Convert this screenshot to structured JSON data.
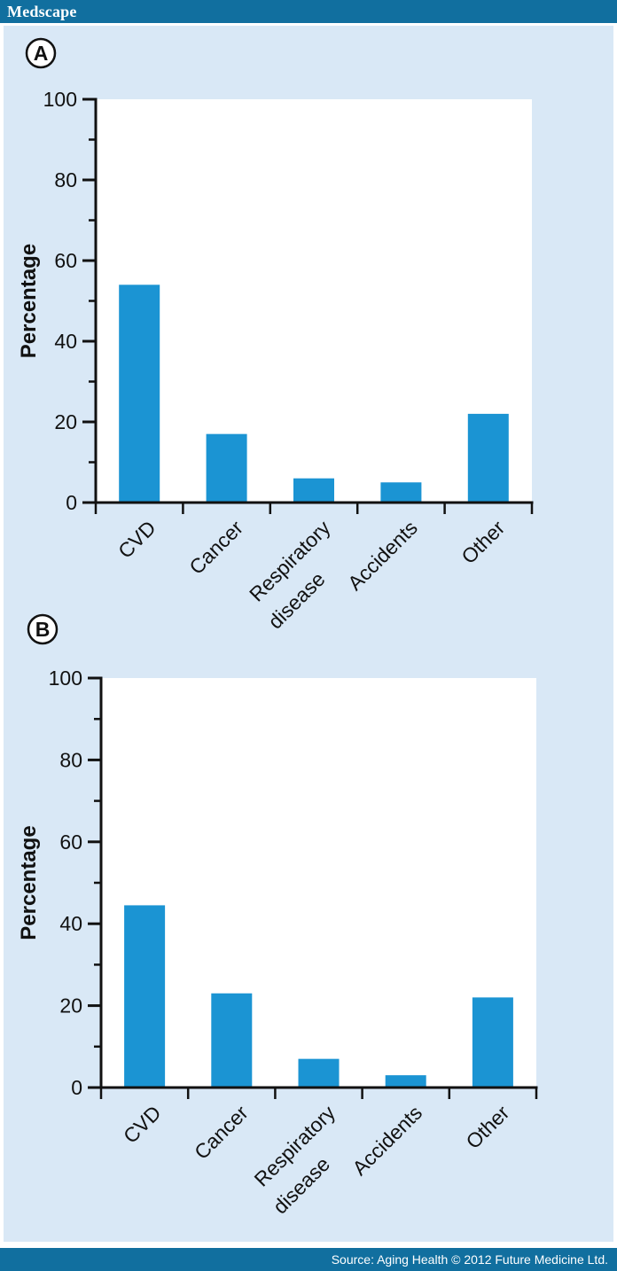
{
  "header": {
    "logo": "Medscape"
  },
  "footer": {
    "source": "Source: Aging Health © 2012 Future Medicine Ltd."
  },
  "colors": {
    "band_blue": "#116f9f",
    "background_blue": "#d9e8f6",
    "bar_blue": "#1b94d3",
    "axis_black": "#111111",
    "plot_white": "#ffffff"
  },
  "chart_data": [
    {
      "type": "bar",
      "panel_label": "A",
      "categories": [
        "CVD",
        "Cancer",
        "Respiratory disease",
        "Accidents",
        "Other"
      ],
      "values": [
        54,
        17,
        6,
        5,
        22
      ],
      "ylabel": "Percentage",
      "ylim": [
        0,
        100
      ],
      "yticks_major": [
        0,
        20,
        40,
        60,
        80,
        100
      ],
      "yticks_minor": [
        10,
        30,
        50,
        70,
        90
      ],
      "grid": false,
      "legend": "none",
      "bar_color": "#1b94d3"
    },
    {
      "type": "bar",
      "panel_label": "B",
      "categories": [
        "CVD",
        "Cancer",
        "Respiratory disease",
        "Accidents",
        "Other"
      ],
      "values": [
        44.5,
        23,
        7,
        3,
        22
      ],
      "ylabel": "Percentage",
      "ylim": [
        0,
        100
      ],
      "yticks_major": [
        0,
        20,
        40,
        60,
        80,
        100
      ],
      "yticks_minor": [
        10,
        30,
        50,
        70,
        90
      ],
      "grid": false,
      "legend": "none",
      "bar_color": "#1b94d3"
    }
  ]
}
